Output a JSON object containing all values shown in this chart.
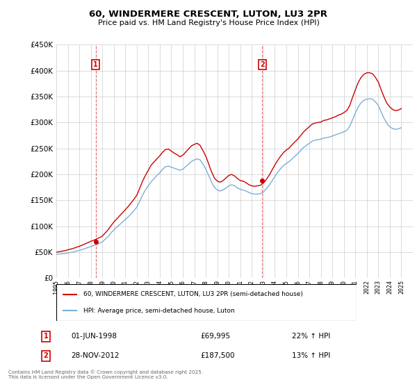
{
  "title": "60, WINDERMERE CRESCENT, LUTON, LU3 2PR",
  "subtitle": "Price paid vs. HM Land Registry's House Price Index (HPI)",
  "legend_line1": "60, WINDERMERE CRESCENT, LUTON, LU3 2PR (semi-detached house)",
  "legend_line2": "HPI: Average price, semi-detached house, Luton",
  "annotation1_label": "1",
  "annotation1_date": "01-JUN-1998",
  "annotation1_price": "£69,995",
  "annotation1_hpi": "22% ↑ HPI",
  "annotation2_label": "2",
  "annotation2_date": "28-NOV-2012",
  "annotation2_price": "£187,500",
  "annotation2_hpi": "13% ↑ HPI",
  "footer": "Contains HM Land Registry data © Crown copyright and database right 2025.\nThis data is licensed under the Open Government Licence v3.0.",
  "xlim": [
    1995,
    2026
  ],
  "ylim": [
    0,
    450000
  ],
  "red_color": "#cc0000",
  "blue_color": "#7bafd4",
  "background_color": "#ffffff",
  "grid_color": "#cccccc",
  "sale1_x": 1998.42,
  "sale1_y": 69995,
  "sale2_x": 2012.91,
  "sale2_y": 187500,
  "hpi_x": [
    1995.0,
    1995.25,
    1995.5,
    1995.75,
    1996.0,
    1996.25,
    1996.5,
    1996.75,
    1997.0,
    1997.25,
    1997.5,
    1997.75,
    1998.0,
    1998.25,
    1998.5,
    1998.75,
    1999.0,
    1999.25,
    1999.5,
    1999.75,
    2000.0,
    2000.25,
    2000.5,
    2000.75,
    2001.0,
    2001.25,
    2001.5,
    2001.75,
    2002.0,
    2002.25,
    2002.5,
    2002.75,
    2003.0,
    2003.25,
    2003.5,
    2003.75,
    2004.0,
    2004.25,
    2004.5,
    2004.75,
    2005.0,
    2005.25,
    2005.5,
    2005.75,
    2006.0,
    2006.25,
    2006.5,
    2006.75,
    2007.0,
    2007.25,
    2007.5,
    2007.75,
    2008.0,
    2008.25,
    2008.5,
    2008.75,
    2009.0,
    2009.25,
    2009.5,
    2009.75,
    2010.0,
    2010.25,
    2010.5,
    2010.75,
    2011.0,
    2011.25,
    2011.5,
    2011.75,
    2012.0,
    2012.25,
    2012.5,
    2012.75,
    2013.0,
    2013.25,
    2013.5,
    2013.75,
    2014.0,
    2014.25,
    2014.5,
    2014.75,
    2015.0,
    2015.25,
    2015.5,
    2015.75,
    2016.0,
    2016.25,
    2016.5,
    2016.75,
    2017.0,
    2017.25,
    2017.5,
    2017.75,
    2018.0,
    2018.25,
    2018.5,
    2018.75,
    2019.0,
    2019.25,
    2019.5,
    2019.75,
    2020.0,
    2020.25,
    2020.5,
    2020.75,
    2021.0,
    2021.25,
    2021.5,
    2021.75,
    2022.0,
    2022.25,
    2022.5,
    2022.75,
    2023.0,
    2023.25,
    2023.5,
    2023.75,
    2024.0,
    2024.25,
    2024.5,
    2024.75,
    2025.0
  ],
  "hpi_y": [
    46000,
    46500,
    47000,
    47500,
    48500,
    49500,
    50500,
    52000,
    53500,
    55000,
    57000,
    59000,
    61000,
    63000,
    65000,
    67000,
    70000,
    75000,
    80000,
    87000,
    93000,
    98000,
    103000,
    108000,
    113000,
    118000,
    124000,
    130000,
    137000,
    148000,
    160000,
    170000,
    178000,
    186000,
    192000,
    198000,
    203000,
    210000,
    215000,
    216000,
    214000,
    212000,
    210000,
    208000,
    210000,
    215000,
    220000,
    225000,
    228000,
    230000,
    228000,
    220000,
    210000,
    198000,
    185000,
    175000,
    170000,
    168000,
    170000,
    174000,
    178000,
    180000,
    178000,
    174000,
    171000,
    170000,
    168000,
    165000,
    163000,
    162000,
    162000,
    163000,
    166000,
    172000,
    179000,
    187000,
    196000,
    204000,
    211000,
    217000,
    221000,
    225000,
    230000,
    235000,
    240000,
    246000,
    252000,
    256000,
    260000,
    264000,
    266000,
    267000,
    268000,
    270000,
    271000,
    272000,
    274000,
    276000,
    278000,
    280000,
    282000,
    285000,
    292000,
    305000,
    318000,
    330000,
    338000,
    343000,
    345000,
    346000,
    345000,
    340000,
    333000,
    320000,
    308000,
    298000,
    292000,
    288000,
    287000,
    288000,
    290000
  ],
  "red_x": [
    1995.0,
    1995.25,
    1995.5,
    1995.75,
    1996.0,
    1996.25,
    1996.5,
    1996.75,
    1997.0,
    1997.25,
    1997.5,
    1997.75,
    1998.0,
    1998.25,
    1998.5,
    1998.75,
    1999.0,
    1999.25,
    1999.5,
    1999.75,
    2000.0,
    2000.25,
    2000.5,
    2000.75,
    2001.0,
    2001.25,
    2001.5,
    2001.75,
    2002.0,
    2002.25,
    2002.5,
    2002.75,
    2003.0,
    2003.25,
    2003.5,
    2003.75,
    2004.0,
    2004.25,
    2004.5,
    2004.75,
    2005.0,
    2005.25,
    2005.5,
    2005.75,
    2006.0,
    2006.25,
    2006.5,
    2006.75,
    2007.0,
    2007.25,
    2007.5,
    2007.75,
    2008.0,
    2008.25,
    2008.5,
    2008.75,
    2009.0,
    2009.25,
    2009.5,
    2009.75,
    2010.0,
    2010.25,
    2010.5,
    2010.75,
    2011.0,
    2011.25,
    2011.5,
    2011.75,
    2012.0,
    2012.25,
    2012.5,
    2012.75,
    2013.0,
    2013.25,
    2013.5,
    2013.75,
    2014.0,
    2014.25,
    2014.5,
    2014.75,
    2015.0,
    2015.25,
    2015.5,
    2015.75,
    2016.0,
    2016.25,
    2016.5,
    2016.75,
    2017.0,
    2017.25,
    2017.5,
    2017.75,
    2018.0,
    2018.25,
    2018.5,
    2018.75,
    2019.0,
    2019.25,
    2019.5,
    2019.75,
    2020.0,
    2020.25,
    2020.5,
    2020.75,
    2021.0,
    2021.25,
    2021.5,
    2021.75,
    2022.0,
    2022.25,
    2022.5,
    2022.75,
    2023.0,
    2023.25,
    2023.5,
    2023.75,
    2024.0,
    2024.25,
    2024.5,
    2024.75,
    2025.0
  ],
  "red_y": [
    50000,
    51000,
    52000,
    53000,
    54500,
    56000,
    57500,
    59500,
    61500,
    63500,
    66000,
    68500,
    71000,
    73000,
    75500,
    78000,
    81000,
    87000,
    93000,
    101000,
    108000,
    114000,
    120000,
    126000,
    132000,
    138000,
    145000,
    152000,
    160000,
    173000,
    187000,
    198000,
    208000,
    218000,
    224000,
    230000,
    236000,
    243000,
    248000,
    249000,
    245000,
    241000,
    238000,
    234000,
    237000,
    243000,
    249000,
    255000,
    258000,
    260000,
    256000,
    246000,
    235000,
    220000,
    205000,
    193000,
    187000,
    185000,
    188000,
    193000,
    198000,
    200000,
    197000,
    192000,
    188000,
    187000,
    184000,
    180000,
    178000,
    177000,
    178000,
    179000,
    183000,
    190000,
    198000,
    208000,
    218000,
    227000,
    235000,
    242000,
    247000,
    251000,
    257000,
    263000,
    268000,
    275000,
    282000,
    287000,
    292000,
    297000,
    299000,
    300000,
    301000,
    304000,
    305000,
    307000,
    309000,
    311000,
    314000,
    316000,
    319000,
    323000,
    332000,
    348000,
    363000,
    377000,
    387000,
    393000,
    396000,
    396000,
    394000,
    387000,
    378000,
    363000,
    349000,
    337000,
    330000,
    325000,
    323000,
    324000,
    327000
  ]
}
